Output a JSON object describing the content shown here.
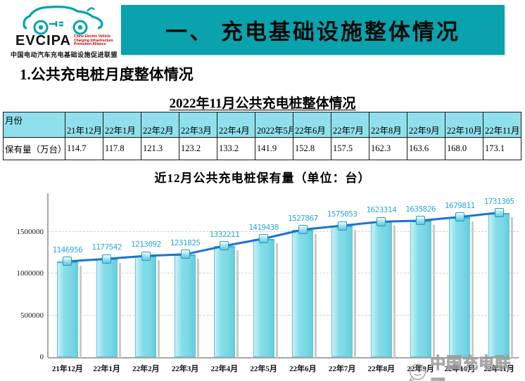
{
  "logo": {
    "acronym": "EVCIPA",
    "subtitle": "China Electric Vehicle\nCharging Infrastructure\nPromotion Alliance",
    "chinese_name": "中国电动汽车充电基础设施促进联盟"
  },
  "banner": {
    "title": "一、 充电基础设施整体情况",
    "bg_color": "#0AA2AC"
  },
  "section": {
    "heading": "1.公共充电桩月度整体情况"
  },
  "table": {
    "title": "2022年11月公共充电桩整体情况",
    "corner_header": "月份",
    "columns": [
      "21年12月",
      "22年1月",
      "22年2月",
      "22年3月",
      "22年4月",
      "2022年5月",
      "22年6月",
      "22年7月",
      "22年8月",
      "22年9月",
      "22年10月",
      "22年11月"
    ],
    "row_label": "保有量（万台）",
    "values": [
      "114.7",
      "117.8",
      "121.3",
      "123.2",
      "133.2",
      "141.9",
      "152.8",
      "157.5",
      "162.3",
      "163.6",
      "168.0",
      "173.1"
    ],
    "header_bg": "#8FE0EC"
  },
  "chart_data": {
    "type": "bar",
    "title": "近12月公共充电桩保有量（单位：台）",
    "categories": [
      "21年12月",
      "22年1月",
      "22年2月",
      "22年3月",
      "22年4月",
      "22年5月",
      "22年6月",
      "22年7月",
      "22年8月",
      "22年9月",
      "22年10月",
      "22年11月"
    ],
    "values": [
      1146956,
      1177542,
      1213092,
      1231825,
      1332211,
      1419438,
      1527867,
      1575053,
      1623314,
      1635826,
      1679811,
      1731305
    ],
    "series_overlay": "line with square markers through bar tops",
    "ylim": [
      0,
      1963000
    ],
    "yticks": [
      0,
      500000,
      1000000,
      1500000
    ],
    "grid": "horizontal dashed",
    "legend": "none",
    "bar_color": "#7EDAE6",
    "line_color": "#1C72CF",
    "data_label_color": "#2DA7DC"
  },
  "watermark": {
    "text": "中国充电联盟"
  }
}
